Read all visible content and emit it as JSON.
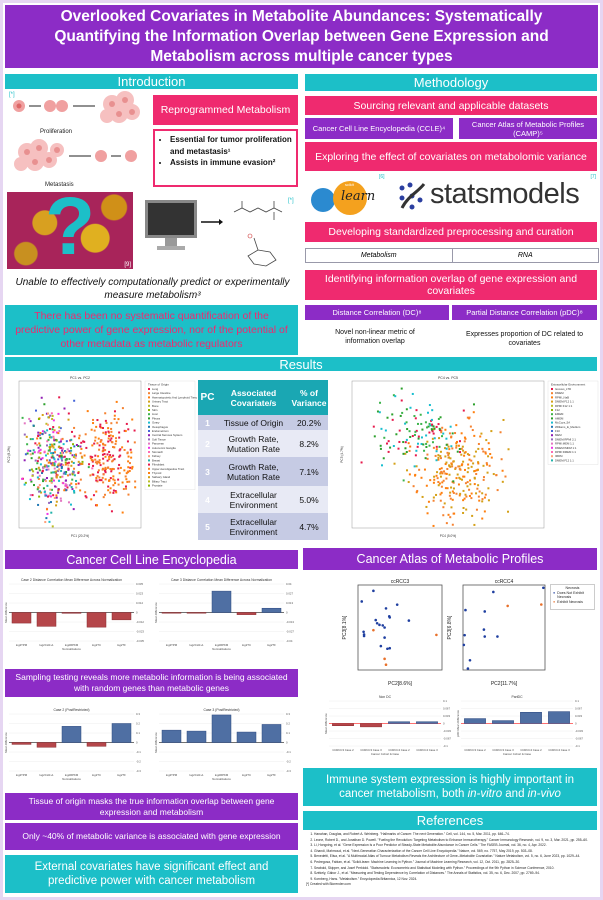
{
  "title": "Overlooked Covariates in Metabolite Abundances: Systematically Quantifying the Information Overlap between Gene Expression and Metabolism across multiple cancer types",
  "colors": {
    "purple": "#8c2cc6",
    "teal": "#1cbfc8",
    "pink": "#ef2a6f",
    "bar_negative": "#b5464a",
    "bar_positive": "#4f6fa3"
  },
  "introduction": {
    "header": "Introduction",
    "cells_credit": "[*]",
    "proliferation_label": "Proliferation",
    "metastasis_label": "Metastasis",
    "reprogrammed_title": "Reprogrammed Metabolism",
    "bullets": [
      "Essential for tumor proliferation and metastasis¹",
      "Assists in immune evasion²"
    ],
    "image_credit": "[9]",
    "molecule_credit": "[*]",
    "caption": "Unable to effectively computationally predict or experimentally measure metabolism³",
    "gap_statement": "There has been no systematic quantification of the predictive power of gene expression, nor of the potential of other metadata as metabolic regulators"
  },
  "methodology": {
    "header": "Methodology",
    "step1": "Sourcing relevant and applicable datasets",
    "datasets": [
      "Cancer Cell Line Encyclopedia (CCLE)⁴",
      "Cancer Atlas of Metabolic Profiles (CAMP)⁵"
    ],
    "step2": "Exploring the effect of covariates on metabolomic variance",
    "logo1_small": "scikit",
    "logo1": "learn",
    "logo1_credit": "[6]",
    "logo2": "statsmodels",
    "logo2_credit": "[7]",
    "step3": "Developing standardized preprocessing and curation",
    "preprocessing": [
      "Metabolism",
      "RNA"
    ],
    "step4": "Identifying information overlap of gene expression and covariates",
    "metrics": [
      {
        "name": "Distance Correlation (DC)⁸",
        "description": "Novel non-linear metric of information overlap"
      },
      {
        "name": "Partial Distance Correlation (pDC)⁸",
        "description": "Expresses proportion of DC related to covariates"
      }
    ]
  },
  "results": {
    "header": "Results",
    "pca_left": {
      "title": "PC1 vs. PC2",
      "xlabel": "PC1 (20.2%)",
      "ylabel": "PC2 (8.2%)",
      "legend_title": "Tissue of Origin",
      "legend": [
        "Lung",
        "Large Intestine",
        "Haematopoietic And Lymphoid Tissue",
        "Urinary Tract",
        "Bone",
        "Skin",
        "Liver",
        "Pleura",
        "Ovary",
        "Oesophagus",
        "Endometrium",
        "Central Nervous System",
        "Soft Tissue",
        "Pancreas",
        "Autonomic Ganglia",
        "Stomach",
        "Kidney",
        "Breast",
        "Fibroblast",
        "Upper Aerodigestive Tract",
        "Thyroid",
        "Salivary Gland",
        "Biliary Tract",
        "Prostate"
      ]
    },
    "pca_right": {
      "title": "PC4 vs. PC5",
      "xlabel": "PC4 (5.0%)",
      "ylabel": "PC5 (4.7%)",
      "legend_title": "Extracellular Environment",
      "legend": [
        "Iscoves_LTD",
        "DMEM",
        "RPMI_NaB",
        "DMEM:F12 1:1",
        "RPMI:F12 1:1",
        "F12",
        "EMEM",
        "AMEM",
        "McCoys_5A",
        "Williams_E_Medium",
        "F10",
        "MEM",
        "DMEM:RPMI 2:1",
        "RPMI:MEM 1:1",
        "DMEM:IMDM 1:1",
        "RPMI:DMEM 1:1",
        "IMDM",
        "DMEM:F12 1:1"
      ]
    },
    "table": {
      "headers": [
        "PC",
        "Associated Covariate/s",
        "% of Variance"
      ],
      "rows": [
        {
          "pc": "1",
          "covariate": "Tissue of Origin",
          "variance": "20.2%"
        },
        {
          "pc": "2",
          "covariate": "Growth Rate, Mutation Rate",
          "variance": "8.2%"
        },
        {
          "pc": "3",
          "covariate": "Growth Rate, Mutation Rate",
          "variance": "7.1%"
        },
        {
          "pc": "4",
          "covariate": "Extracellular Environment",
          "variance": "5.0%"
        },
        {
          "pc": "5",
          "covariate": "Extracellular Environment",
          "variance": "4.7%"
        }
      ]
    }
  },
  "ccle": {
    "header": "Cancer Cell Line Encyclopedia",
    "finding1": "Sampling testing reveals more metabolic information is being associated with random genes than metabolic genes",
    "finding2": "Tissue of origin masks the true information overlap between gene expression and metabolism",
    "finding3": "Only ~40% of metabolic variance is associated with gene expression",
    "conclusion": "External covariates have significant effect and predictive power with cancer metabolism"
  },
  "camp": {
    "header": "Cancer Atlas of Metabolic Profiles",
    "legend_title": "Necrosis",
    "legend": [
      "Does Not Exhibit Necrosis",
      "Exhibit Necrosis"
    ],
    "conclusion_prefix": "Immune system expression is highly important in cancer metabolism, both ",
    "conclusion_em1": "in-vitro",
    "conclusion_mid": " and ",
    "conclusion_em2": "in-vivo"
  },
  "chart_data": [
    {
      "type": "bar",
      "title": "Case 2 Distance Correlation Mean Difference Across Normalization",
      "xlabel": "Normalizations",
      "ylabel": "Mean Difference",
      "categories": [
        "log2TPM",
        "log2CLR+1",
        "log2RPKM",
        "log2TC",
        "log2TF"
      ],
      "values": [
        -0.013,
        -0.017,
        -0.001,
        -0.018,
        -0.009
      ],
      "ylim": [
        -0.035,
        0.035
      ]
    },
    {
      "type": "bar",
      "title": "Case 3 Distance Correlation Mean Difference Across Normalization",
      "xlabel": "Normalizations",
      "ylabel": "Mean Difference",
      "categories": [
        "log2TPM",
        "log2CLR+1",
        "log2RPKM",
        "log2TC",
        "log2TF"
      ],
      "values": [
        -0.001,
        -0.001,
        0.03,
        -0.003,
        0.006
      ],
      "ylim": [
        -0.04,
        0.04
      ]
    },
    {
      "type": "bar",
      "title": "Case 2 (PostRestricted)",
      "xlabel": "Normalizations",
      "ylabel": "Mean Difference",
      "categories": [
        "log2TPM",
        "log2CLR+1",
        "log2RPKM",
        "log2TC",
        "log2TF"
      ],
      "values": [
        -0.02,
        -0.05,
        0.17,
        -0.04,
        0.2
      ],
      "ylim": [
        -0.3,
        0.3
      ]
    },
    {
      "type": "bar",
      "title": "Case 3 (PostRestricted)",
      "xlabel": "Normalizations",
      "ylabel": "Mean Difference",
      "categories": [
        "log2TPM",
        "log2CLR+1",
        "log2RPKM",
        "log2TC",
        "log2TF"
      ],
      "values": [
        0.13,
        0.12,
        0.29,
        0.11,
        0.19
      ],
      "ylim": [
        -0.3,
        0.3
      ]
    },
    {
      "type": "scatter",
      "title": "ccRCC3",
      "xlabel": "PC2[8.6%]",
      "ylabel": "PC3[8.1%]",
      "xlim": [
        -6,
        12
      ],
      "ylim": [
        -9,
        7
      ],
      "series": [
        {
          "name": "Does Not Exhibit Necrosis",
          "points": [
            [
              -5.2,
              3.9
            ],
            [
              -2.7,
              5.9
            ],
            [
              0,
              2.6
            ],
            [
              2.4,
              3.3
            ],
            [
              -4.8,
              -1.8
            ],
            [
              -4.7,
              -2.3
            ],
            [
              -4.7,
              -2.6
            ],
            [
              -2.2,
              0.4
            ],
            [
              -1.9,
              -0.2
            ],
            [
              -1.4,
              -0.5
            ],
            [
              -0.7,
              -0.6
            ],
            [
              -0.3,
              -1
            ],
            [
              0.7,
              1.1
            ],
            [
              0.8,
              0.9
            ],
            [
              4.9,
              0.3
            ],
            [
              -0.3,
              -2.9
            ],
            [
              -1.1,
              -4.5
            ],
            [
              0.3,
              -5
            ],
            [
              0.8,
              -4.9
            ]
          ]
        },
        {
          "name": "Exhibit Necrosis",
          "points": [
            [
              -2.7,
              -1.5
            ],
            [
              -0.3,
              -6.9
            ],
            [
              0,
              -8
            ],
            [
              10.8,
              -2.4
            ]
          ]
        }
      ]
    },
    {
      "type": "scatter",
      "title": "ccRCC4",
      "xlabel": "PC2[11.7%]",
      "ylabel": "PC3[6.8%]",
      "xlim": [
        -7,
        13
      ],
      "ylim": [
        -2.2,
        3.9
      ],
      "series": [
        {
          "name": "Does Not Exhibit Necrosis",
          "points": [
            [
              -6.4,
              2.1
            ],
            [
              -6.6,
              0.3
            ],
            [
              -6.8,
              -0.4
            ],
            [
              -5.3,
              -1.5
            ],
            [
              -5.8,
              -2.1
            ],
            [
              0.4,
              3.4
            ],
            [
              -1.7,
              2
            ],
            [
              -1.9,
              0.7
            ],
            [
              -1.7,
              0.2
            ],
            [
              1.4,
              0.2
            ],
            [
              12.6,
              3.7
            ]
          ]
        },
        {
          "name": "Exhibit Necrosis",
          "points": [
            [
              3.9,
              2.4
            ],
            [
              12.1,
              2.5
            ]
          ]
        }
      ]
    },
    {
      "type": "bar",
      "title": "Non DC",
      "xlabel": "Cancer Cohort & Case",
      "ylabel": "Mean Difference",
      "categories": [
        "CCRCC3 Case 2",
        "CCRCC3 Case 3",
        "CCRCC4 Case 2",
        "CCRCC4 Case 3"
      ],
      "values": [
        -0.01,
        -0.015,
        0.008,
        0.008
      ],
      "ylim": [
        -0.1,
        0.1
      ]
    },
    {
      "type": "bar",
      "title": "PartDC",
      "xlabel": "Cancer Cohort & Case",
      "ylabel": "pDC Mean Difference",
      "categories": [
        "CCRCC3 Case 2",
        "CCRCC3 Case 3",
        "CCRCC4 Case 2",
        "CCRCC4 Case 3"
      ],
      "values": [
        0.022,
        0.013,
        0.05,
        0.053
      ],
      "ylim": [
        -0.1,
        0.1
      ]
    }
  ],
  "references": {
    "header": "References",
    "items": [
      "Hanahan, Douglas, and Robert A. Weinberg. \"Hallmarks of Cancer: The next Generation.\" Cell, vol. 144, no. 5, Mar. 2011, pp. 646–74.",
      "Leone, Robert D., and Jonathan D. Powell. \"Fueling the Revolution: Targeting Metabolism to Enhance Immunotherapy.\" Cancer Immunology Research, vol. 9, no. 3, Mar. 2021, pp. 255–60.",
      "Li, Hongxing, et al. \"Gene Expression Is a Poor Predictor of Steady-State Metabolite Abundance in Cancer Cells.\" The FASEB Journal, vol. 36, no. 4, Apr. 2022.",
      "Ghandi, Mahmoud, et al. \"Next-Generation Characterization of the Cancer Cell Line Encyclopedia.\" Nature, vol. 569, no. 7757, May 2019, pp. 503–08.",
      "Benedetti, Elisa, et al. \"A Multimodal Atlas of Tumour Metabolism Reveals the Architecture of Gene–Metabolite Covariation.\" Nature Metabolism, vol. 5, no. 6, June 2023, pp. 1029–44.",
      "Pedregosa, Fabian, et al. \"Scikit-learn: Machine Learning in Python.\" Journal of Machine Learning Research, vol. 12, Oct. 2011, pp. 2825–30.",
      "Seabold, Skipper, and Josef Perktold. \"Statsmodels: Econometric and Statistical Modeling with Python.\" Proceedings of the 9th Python in Science Conference, 2010.",
      "Székely, Gábor J., et al. \"Measuring and Testing Dependence by Correlation of Distances.\" The Annals of Statistics, vol. 35, no. 6, Dec. 2007, pp. 2769–94.",
      "Kornberg, Hans. \"Metabolism.\" Encyclopedia Britannica, 12 Nov. 2024."
    ],
    "footnote": "[*] Created with Biorender.com"
  }
}
